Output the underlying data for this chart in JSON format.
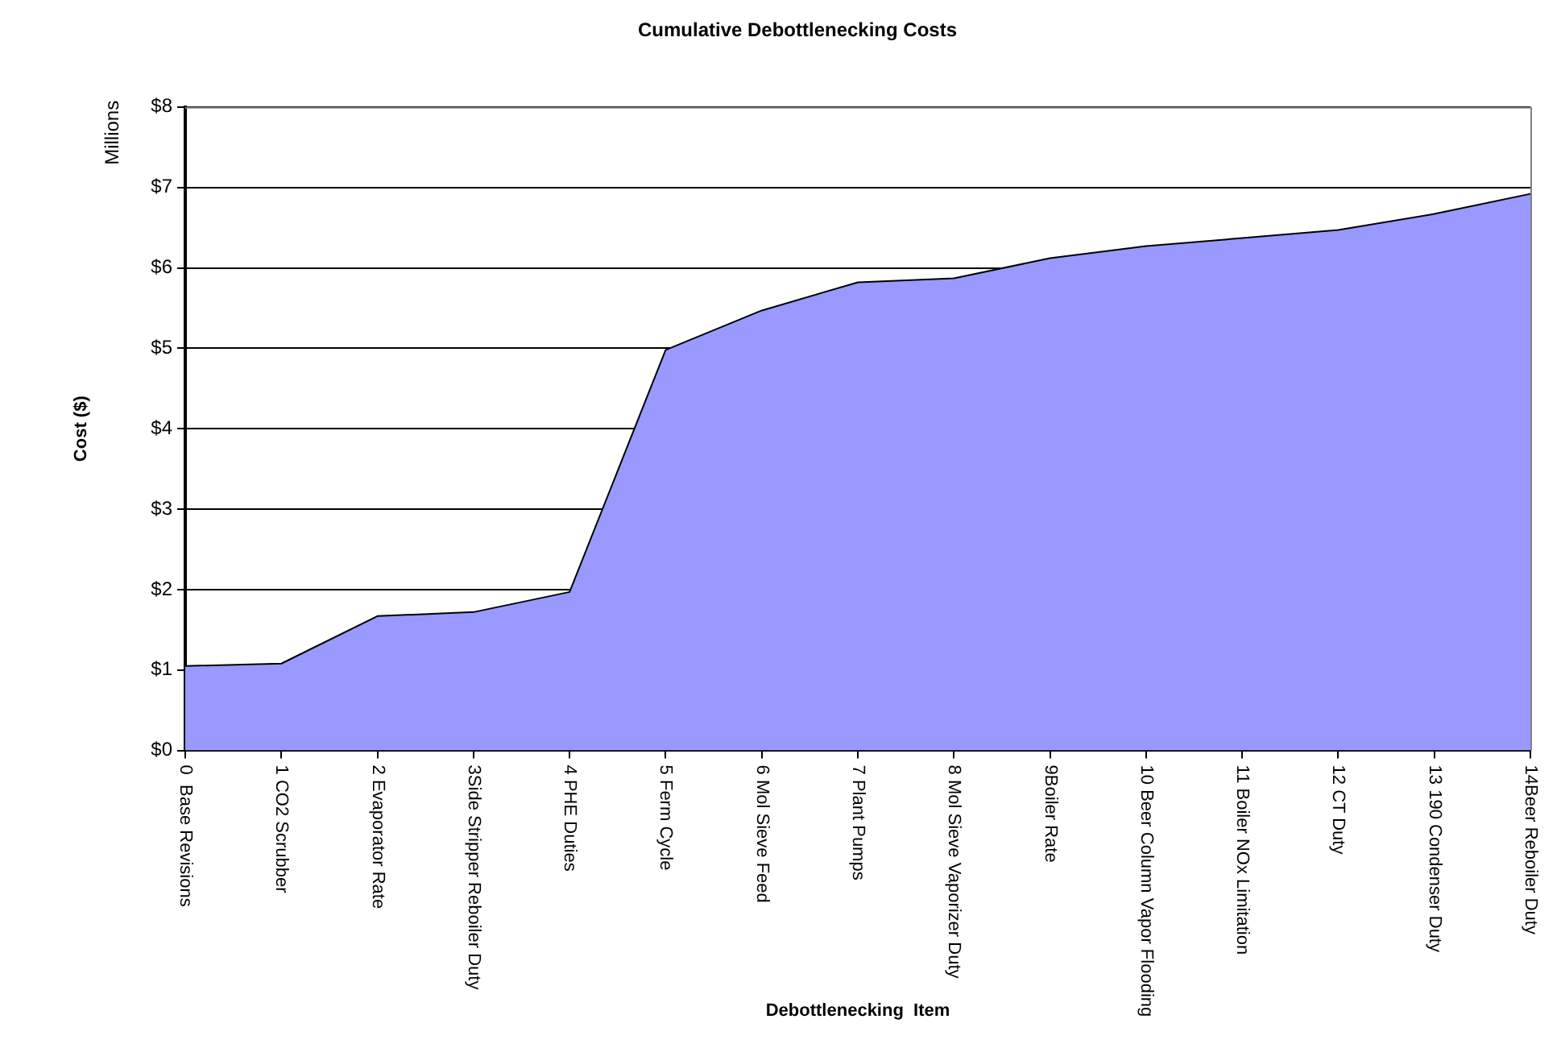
{
  "chart_data": {
    "type": "area",
    "title": "Cumulative Debottlenecking Costs",
    "xlabel": "Debottlenecking  Item",
    "ylabel": "Cost ($)",
    "annotations": [
      "Millions"
    ],
    "categories": [
      "0  Base Revisions",
      "1 CO2 Scrubber",
      "2 Evaporator Rate",
      "3Side Stripper Reboiler Duty",
      "4 PHE Duties",
      "5 Ferm Cycle",
      "6 Mol Sieve Feed",
      "7 Plant Pumps",
      "8 Mol Sieve Vaporizer Duty",
      "9Boiler Rate",
      "10 Beer Column Vapor Flooding",
      "11 Boiler NOx Limitation",
      "12 CT Duty",
      "13 190 Condenser Duty",
      "14Beer Reboiler Duty"
    ],
    "series": [
      {
        "color": "#9999ff",
        "values": [
          1.05,
          1.08,
          1.67,
          1.72,
          1.97,
          4.98,
          5.47,
          5.82,
          5.87,
          6.12,
          6.27,
          6.37,
          6.47,
          6.67,
          6.92
        ]
      }
    ],
    "ylim": [
      0,
      8
    ],
    "yticks": [
      {
        "value": 0,
        "label": "$0"
      },
      {
        "value": 1,
        "label": "$1"
      },
      {
        "value": 2,
        "label": "$2"
      },
      {
        "value": 3,
        "label": "$3"
      },
      {
        "value": 4,
        "label": "$4"
      },
      {
        "value": 5,
        "label": "$5"
      },
      {
        "value": 6,
        "label": "$6"
      },
      {
        "value": 7,
        "label": "$7"
      },
      {
        "value": 8,
        "label": "$8"
      }
    ],
    "grid": "y",
    "legend": false,
    "marker": "none",
    "line_style": "solid"
  }
}
